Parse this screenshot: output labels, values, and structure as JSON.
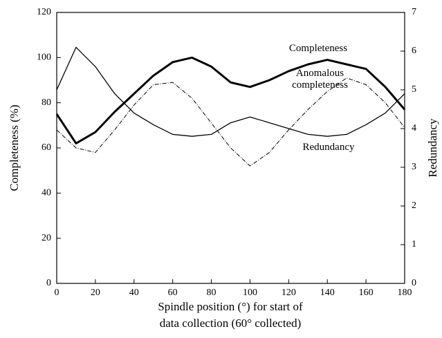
{
  "chart_data": {
    "type": "line",
    "xlabel": [
      "Spindle position (°) for start of",
      "data collection (60° collected)"
    ],
    "ylabel": "Completeness (%)",
    "y2label": "Redundancy",
    "x": [
      0,
      10,
      20,
      30,
      40,
      50,
      60,
      70,
      80,
      90,
      100,
      110,
      120,
      130,
      140,
      150,
      160,
      170,
      180
    ],
    "series": [
      {
        "name": "Completeness",
        "color": "#000",
        "width": 3,
        "dash": "none",
        "values": [
          75,
          62,
          67,
          76,
          84,
          92,
          98,
          100,
          96,
          89,
          87,
          90,
          94,
          97,
          99,
          97,
          95,
          87,
          77
        ]
      },
      {
        "name": "Anomalous completeness",
        "color": "#000",
        "width": 1,
        "dash": "6 2 1 2",
        "values": [
          68,
          60,
          58,
          68,
          79,
          88,
          89,
          82,
          71,
          60,
          52,
          58,
          68,
          77,
          85,
          91,
          88,
          80,
          69
        ]
      },
      {
        "name": "Redundancy",
        "color": "#000",
        "width": 1.3,
        "dash": "none",
        "axis": "y2",
        "values": [
          5.0,
          6.1,
          5.6,
          4.9,
          4.4,
          4.1,
          3.85,
          3.8,
          3.85,
          4.15,
          4.3,
          4.15,
          4.0,
          3.85,
          3.8,
          3.85,
          4.1,
          4.4,
          4.9
        ]
      }
    ],
    "xlim": [
      0,
      180
    ],
    "xticks": [
      0,
      20,
      40,
      60,
      80,
      100,
      120,
      140,
      160,
      180
    ],
    "ylim": [
      0,
      120
    ],
    "yticks": [
      0,
      20,
      40,
      60,
      80,
      100,
      120
    ],
    "y2lim": [
      0,
      7
    ],
    "y2ticks": [
      0,
      1,
      2,
      3,
      4,
      5,
      6,
      7
    ],
    "grid": false
  }
}
